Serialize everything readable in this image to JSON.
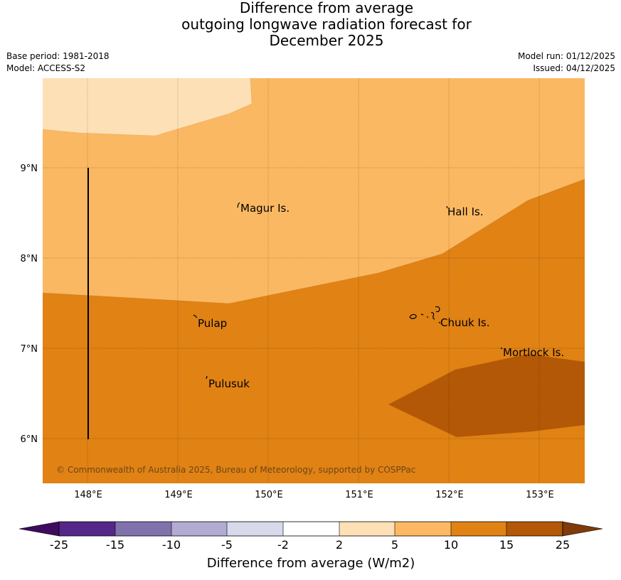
{
  "title": {
    "line1": "Difference from average",
    "line2": "outgoing longwave radiation forecast for",
    "line3": "December 2025"
  },
  "meta": {
    "base_period": "Base period: 1981-2018",
    "model": "Model: ACCESS-S2",
    "model_run": "Model run: 01/12/2025",
    "issued": "Issued: 04/12/2025"
  },
  "map": {
    "lon_labels": [
      "148°E",
      "149°E",
      "150°E",
      "151°E",
      "152°E",
      "153°E"
    ],
    "lat_labels": [
      "9°N",
      "8°N",
      "7°N",
      "6°N"
    ],
    "places": [
      "Magur Is.",
      "Hall Is.",
      "Pulap",
      "Chuuk Is.",
      "Mortlock Is.",
      "Pulusuk"
    ],
    "copyright": "© Commonwealth of Australia 2025, Bureau of Meteorology, supported by COSPPac",
    "colors": {
      "band_2_5": "#fde0b6",
      "band_5_10": "#fbb862",
      "band_10_15": "#e08214",
      "band_15_25": "#b35806"
    }
  },
  "colorbar": {
    "tick_labels": [
      "-25",
      "-15",
      "-10",
      "-5",
      "-2",
      "2",
      "5",
      "10",
      "15",
      "25"
    ],
    "colors": [
      "#3f0b5f",
      "#542788",
      "#8073ac",
      "#b2abd2",
      "#d8daeb",
      "#ffffff",
      "#fee0b6",
      "#fdb863",
      "#e08214",
      "#b35806",
      "#7f3b08"
    ],
    "title": "Difference from average (W/m2)"
  }
}
